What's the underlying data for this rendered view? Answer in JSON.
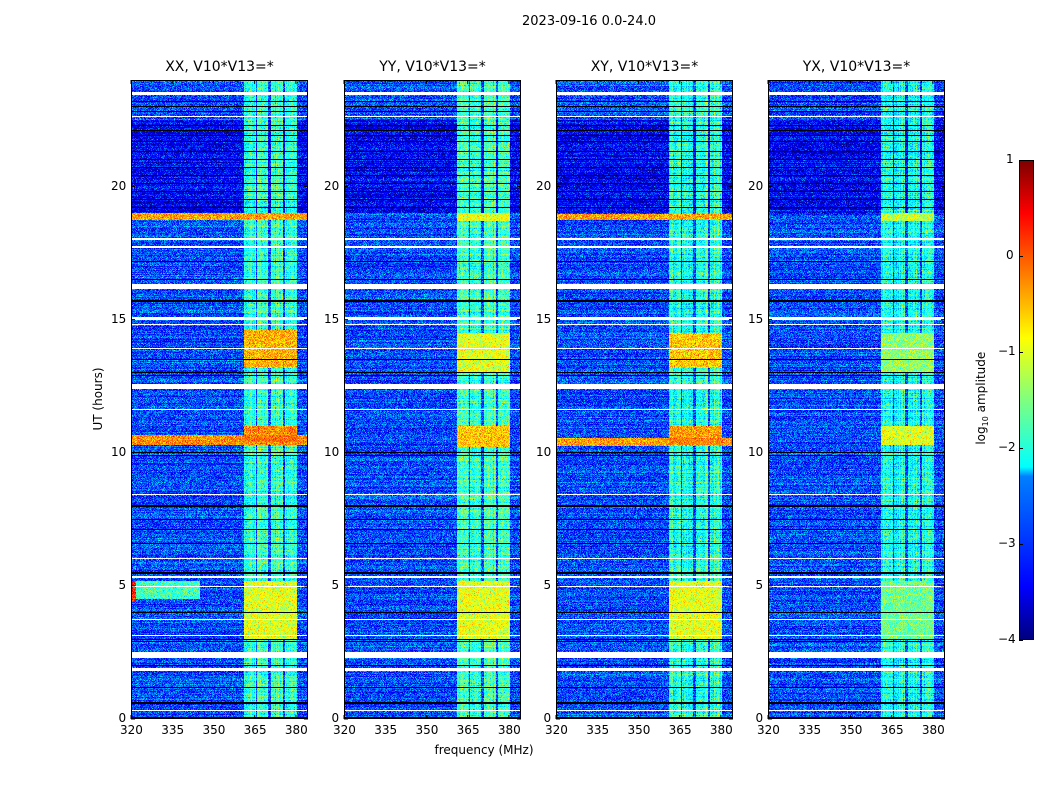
{
  "chart_data": {
    "type": "heatmap",
    "suptitle": "2023-09-16 0.0-24.0",
    "xlabel": "frequency (MHz)",
    "ylabel": "UT (hours)",
    "xlim": [
      320,
      384.4
    ],
    "ylim": [
      0,
      24
    ],
    "xticks": [
      320,
      335,
      350,
      365,
      380
    ],
    "yticks": [
      0,
      5,
      10,
      15,
      20
    ],
    "colorbar": {
      "label_prefix": "log",
      "label_sub": "10",
      "label_suffix": " amplitude",
      "range": [
        -4,
        1
      ],
      "ticks": [
        -4,
        -3,
        -2,
        -1,
        0,
        1
      ],
      "tick_labels": [
        "−4",
        "−3",
        "−2",
        "−1",
        "0",
        "1"
      ],
      "colormap": "jet"
    },
    "background_level": -3.0,
    "bands_mhz": [
      [
        361,
        365.5
      ],
      [
        366,
        370
      ],
      [
        371,
        375.3
      ],
      [
        376,
        380.4
      ]
    ],
    "masked_hours": [
      [
        23.45,
        23.55
      ],
      [
        22.6,
        22.66
      ],
      [
        18.0,
        18.05
      ],
      [
        17.7,
        17.75
      ],
      [
        16.15,
        16.35
      ],
      [
        15.0,
        15.1
      ],
      [
        14.8,
        14.85
      ],
      [
        13.9,
        13.95
      ],
      [
        12.4,
        12.6
      ],
      [
        11.6,
        11.65
      ],
      [
        8.4,
        8.45
      ],
      [
        6.0,
        6.05
      ],
      [
        5.3,
        5.36
      ],
      [
        4.95,
        5.0
      ],
      [
        3.7,
        3.75
      ],
      [
        3.1,
        3.15
      ],
      [
        2.3,
        2.5
      ],
      [
        1.8,
        1.9
      ],
      [
        0.3,
        0.35
      ]
    ],
    "flagged_hours": [
      0.05,
      0.6,
      1.2,
      2.0,
      2.9,
      3.0,
      4.0,
      5.45,
      5.5,
      6.6,
      7.1,
      7.5,
      8.0,
      9.9,
      10.0,
      12.9,
      13.0,
      13.5,
      15.7,
      16.5,
      17.2,
      19.2,
      19.5,
      19.8,
      20.1,
      20.4,
      20.7,
      21.0,
      21.3,
      21.7,
      21.9,
      22.1,
      22.3,
      22.8,
      23.0,
      23.2
    ],
    "panels": [
      {
        "title": "XX, V10*V13=*",
        "band_level": -1.9,
        "events": [
          {
            "t": [
              10.3,
              10.65
            ],
            "f": [
              320,
              384.4
            ],
            "level": -0.3
          },
          {
            "t": [
              18.75,
              19.0
            ],
            "f": [
              320,
              384.4
            ],
            "level": -0.4
          },
          {
            "t": [
              13.2,
              14.6
            ],
            "f": [
              361,
              380.4
            ],
            "level": -0.5
          },
          {
            "t": [
              10.4,
              11.0
            ],
            "f": [
              361,
              380.4
            ],
            "level": -0.3
          },
          {
            "t": [
              3.0,
              5.2
            ],
            "f": [
              361,
              380.4
            ],
            "level": -1.0
          },
          {
            "t": [
              4.4,
              5.2
            ],
            "f": [
              320,
              322
            ],
            "level": 0.2
          },
          {
            "t": [
              4.5,
              5.2
            ],
            "f": [
              320,
              345
            ],
            "level": -1.8
          }
        ]
      },
      {
        "title": "YY, V10*V13=*",
        "band_level": -1.8,
        "events": [
          {
            "t": [
              10.2,
              11.0
            ],
            "f": [
              361,
              380.4
            ],
            "level": -0.6
          },
          {
            "t": [
              13.0,
              14.5
            ],
            "f": [
              361,
              380.4
            ],
            "level": -1.0
          },
          {
            "t": [
              3.0,
              5.2
            ],
            "f": [
              361,
              380.4
            ],
            "level": -1.0
          },
          {
            "t": [
              18.7,
              19.0
            ],
            "f": [
              361,
              380.4
            ],
            "level": -1.0
          }
        ]
      },
      {
        "title": "XY, V10*V13=*",
        "band_level": -1.9,
        "events": [
          {
            "t": [
              10.25,
              10.55
            ],
            "f": [
              320,
              384.4
            ],
            "level": -0.4
          },
          {
            "t": [
              18.75,
              18.95
            ],
            "f": [
              320,
              384.4
            ],
            "level": -0.4
          },
          {
            "t": [
              13.2,
              14.5
            ],
            "f": [
              361,
              380.4
            ],
            "level": -0.6
          },
          {
            "t": [
              10.3,
              11.0
            ],
            "f": [
              361,
              380.4
            ],
            "level": -0.4
          },
          {
            "t": [
              3.0,
              5.2
            ],
            "f": [
              361,
              380.4
            ],
            "level": -1.0
          }
        ]
      },
      {
        "title": "YX, V10*V13=*",
        "band_level": -2.0,
        "events": [
          {
            "t": [
              10.3,
              11.0
            ],
            "f": [
              361,
              380.4
            ],
            "level": -1.0
          },
          {
            "t": [
              13.0,
              14.5
            ],
            "f": [
              361,
              380.4
            ],
            "level": -1.4
          },
          {
            "t": [
              3.0,
              5.2
            ],
            "f": [
              361,
              380.4
            ],
            "level": -1.6
          },
          {
            "t": [
              18.7,
              19.0
            ],
            "f": [
              361,
              380.4
            ],
            "level": -1.2
          }
        ]
      }
    ]
  }
}
